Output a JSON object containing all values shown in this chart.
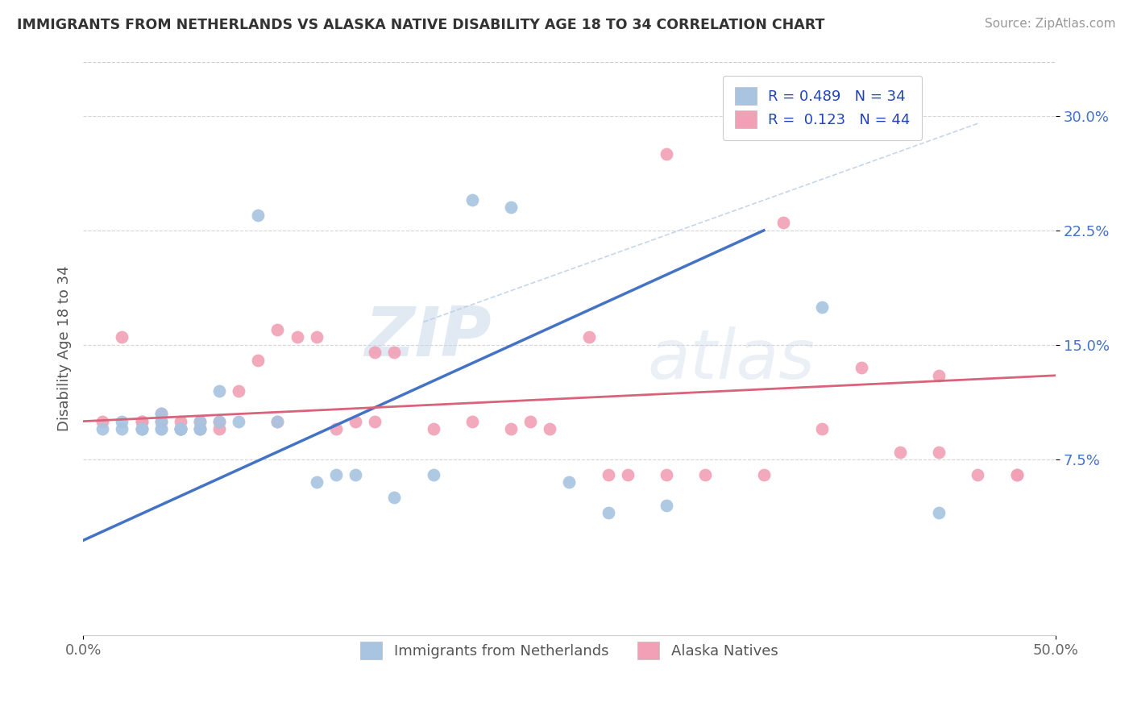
{
  "title": "IMMIGRANTS FROM NETHERLANDS VS ALASKA NATIVE DISABILITY AGE 18 TO 34 CORRELATION CHART",
  "source": "Source: ZipAtlas.com",
  "ylabel": "Disability Age 18 to 34",
  "xlim": [
    0.0,
    0.5
  ],
  "ylim": [
    -0.04,
    0.335
  ],
  "ytick_labels": [
    "7.5%",
    "15.0%",
    "22.5%",
    "30.0%"
  ],
  "ytick_vals": [
    0.075,
    0.15,
    0.225,
    0.3
  ],
  "xtick_labels": [
    "0.0%",
    "50.0%"
  ],
  "xtick_vals": [
    0.0,
    0.5
  ],
  "legend_r1": "R = 0.489",
  "legend_n1": "N = 34",
  "legend_r2": "R =  0.123",
  "legend_n2": "N = 44",
  "color_blue": "#a8c4e0",
  "color_pink": "#f2a0b5",
  "line_blue": "#4472c4",
  "line_pink": "#d9637a",
  "line_dashed_color": "#b8cce4",
  "watermark_zip": "ZIP",
  "watermark_atlas": "atlas",
  "blue_scatter_x": [
    0.01,
    0.02,
    0.02,
    0.03,
    0.03,
    0.03,
    0.04,
    0.04,
    0.04,
    0.04,
    0.05,
    0.05,
    0.05,
    0.05,
    0.06,
    0.06,
    0.06,
    0.07,
    0.07,
    0.08,
    0.09,
    0.1,
    0.12,
    0.13,
    0.14,
    0.16,
    0.18,
    0.2,
    0.22,
    0.25,
    0.27,
    0.3,
    0.38,
    0.44
  ],
  "blue_scatter_y": [
    0.095,
    0.095,
    0.1,
    0.095,
    0.095,
    0.095,
    0.095,
    0.1,
    0.105,
    0.095,
    0.095,
    0.095,
    0.095,
    0.095,
    0.095,
    0.095,
    0.1,
    0.1,
    0.12,
    0.1,
    0.235,
    0.1,
    0.06,
    0.065,
    0.065,
    0.05,
    0.065,
    0.245,
    0.24,
    0.06,
    0.04,
    0.045,
    0.175,
    0.04
  ],
  "pink_scatter_x": [
    0.01,
    0.02,
    0.03,
    0.03,
    0.04,
    0.04,
    0.05,
    0.05,
    0.06,
    0.06,
    0.07,
    0.07,
    0.08,
    0.09,
    0.1,
    0.1,
    0.11,
    0.12,
    0.13,
    0.14,
    0.15,
    0.15,
    0.16,
    0.18,
    0.2,
    0.22,
    0.23,
    0.24,
    0.26,
    0.27,
    0.28,
    0.3,
    0.3,
    0.32,
    0.35,
    0.36,
    0.38,
    0.4,
    0.42,
    0.44,
    0.44,
    0.46,
    0.48,
    0.48
  ],
  "pink_scatter_y": [
    0.1,
    0.155,
    0.1,
    0.1,
    0.1,
    0.105,
    0.095,
    0.1,
    0.095,
    0.1,
    0.095,
    0.1,
    0.12,
    0.14,
    0.16,
    0.1,
    0.155,
    0.155,
    0.095,
    0.1,
    0.145,
    0.1,
    0.145,
    0.095,
    0.1,
    0.095,
    0.1,
    0.095,
    0.155,
    0.065,
    0.065,
    0.065,
    0.275,
    0.065,
    0.065,
    0.23,
    0.095,
    0.135,
    0.08,
    0.13,
    0.08,
    0.065,
    0.065,
    0.065
  ],
  "blue_trendline_x": [
    0.0,
    0.35
  ],
  "blue_trendline_y": [
    0.022,
    0.225
  ],
  "pink_trendline_x": [
    0.0,
    0.5
  ],
  "pink_trendline_y": [
    0.1,
    0.13
  ],
  "dashed_line_x": [
    0.175,
    0.46
  ],
  "dashed_line_y": [
    0.165,
    0.295
  ]
}
